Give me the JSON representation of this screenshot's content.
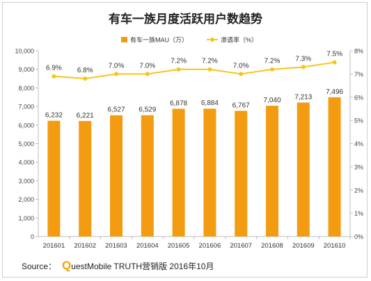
{
  "chart_data": {
    "title": "有车一族月度活跃用户数趋势",
    "type": "bar+line",
    "categories": [
      "201601",
      "201602",
      "201603",
      "201604",
      "201605",
      "201606",
      "201607",
      "201608",
      "201609",
      "201610"
    ],
    "series": [
      {
        "name": "有车一族MAU（万）",
        "type": "bar",
        "axis": "left",
        "color": "#f39c12",
        "values": [
          6232,
          6221,
          6527,
          6529,
          6878,
          6884,
          6767,
          7040,
          7213,
          7496
        ],
        "labels": [
          "6,232",
          "6,221",
          "6,527",
          "6,529",
          "6,878",
          "6,884",
          "6,767",
          "7,040",
          "7,213",
          "7,496"
        ]
      },
      {
        "name": "渗透率（%）",
        "type": "line",
        "axis": "right",
        "color": "#f5c518",
        "values": [
          6.9,
          6.8,
          7.0,
          7.0,
          7.2,
          7.2,
          7.0,
          7.2,
          7.3,
          7.5
        ],
        "labels": [
          "6.9%",
          "6.8%",
          "7.0%",
          "7.0%",
          "7.2%",
          "7.2%",
          "7.0%",
          "7.2%",
          "7.3%",
          "7.5%"
        ]
      }
    ],
    "left_axis": {
      "ylim": [
        0,
        10000
      ],
      "ticks": [
        0,
        1000,
        2000,
        3000,
        4000,
        5000,
        6000,
        7000,
        8000,
        9000,
        10000
      ],
      "tick_labels": [
        "0",
        "1,000",
        "2,000",
        "3,000",
        "4,000",
        "5,000",
        "6,000",
        "7,000",
        "8,000",
        "9,000",
        "10,000"
      ]
    },
    "right_axis": {
      "ylim": [
        0,
        8
      ],
      "ticks": [
        0,
        1,
        2,
        3,
        4,
        5,
        6,
        7,
        8
      ],
      "tick_labels": [
        "0%",
        "1%",
        "2%",
        "3%",
        "4%",
        "5%",
        "6%",
        "7%",
        "8%"
      ]
    },
    "legend_position": "top-center",
    "grid": false
  },
  "source": {
    "prefix": "Source：",
    "brand_letter": "Q",
    "text": "uestMobile TRUTH营销版 2016年10月"
  }
}
